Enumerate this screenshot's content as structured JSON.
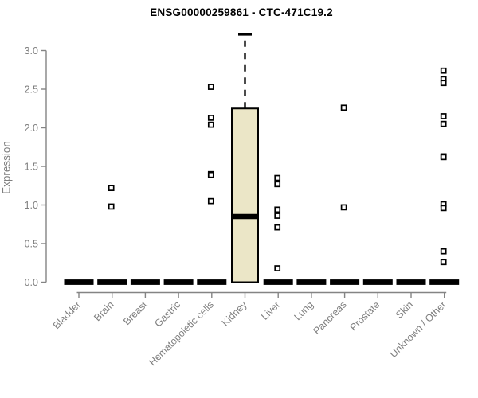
{
  "chart_data": {
    "type": "box",
    "title": "ENSG00000259861 - CTC-471C19.2",
    "ylabel": "Expression",
    "xlabel": "",
    "ylim": [
      0,
      3.3
    ],
    "ytick_labels": [
      "0.0",
      "0.5",
      "1.0",
      "1.5",
      "2.0",
      "2.5",
      "3.0"
    ],
    "ytick_values": [
      0,
      0.5,
      1.0,
      1.5,
      2.0,
      2.5,
      3.0
    ],
    "grid": false,
    "legend": false,
    "categories": [
      "Bladder",
      "Brain",
      "Breast",
      "Gastric",
      "Hematopoietic cells",
      "Kidney",
      "Liver",
      "Lung",
      "Pancreas",
      "Prostate",
      "Skin",
      "Unknown / Other"
    ],
    "series": [
      {
        "category": "Bladder",
        "q1": 0,
        "median": 0,
        "q3": 0,
        "whisker_low": 0,
        "whisker_high": 0,
        "outliers": []
      },
      {
        "category": "Brain",
        "q1": 0,
        "median": 0,
        "q3": 0,
        "whisker_low": 0,
        "whisker_high": 0,
        "outliers": [
          1.22,
          0.98
        ]
      },
      {
        "category": "Breast",
        "q1": 0,
        "median": 0,
        "q3": 0,
        "whisker_low": 0,
        "whisker_high": 0,
        "outliers": []
      },
      {
        "category": "Gastric",
        "q1": 0,
        "median": 0,
        "q3": 0,
        "whisker_low": 0,
        "whisker_high": 0,
        "outliers": []
      },
      {
        "category": "Hematopoietic cells",
        "q1": 0,
        "median": 0,
        "q3": 0,
        "whisker_low": 0,
        "whisker_high": 0,
        "outliers": [
          2.53,
          2.13,
          2.04,
          1.4,
          1.39,
          1.05
        ]
      },
      {
        "category": "Kidney",
        "q1": 0,
        "median": 0.85,
        "q3": 2.25,
        "whisker_low": 0,
        "whisker_high": 3.21,
        "outliers": []
      },
      {
        "category": "Liver",
        "q1": 0,
        "median": 0,
        "q3": 0,
        "whisker_low": 0,
        "whisker_high": 0,
        "outliers": [
          1.35,
          1.27,
          0.94,
          0.86,
          0.71,
          0.18
        ]
      },
      {
        "category": "Lung",
        "q1": 0,
        "median": 0,
        "q3": 0,
        "whisker_low": 0,
        "whisker_high": 0,
        "outliers": []
      },
      {
        "category": "Pancreas",
        "q1": 0,
        "median": 0,
        "q3": 0,
        "whisker_low": 0,
        "whisker_high": 0,
        "outliers": [
          2.26,
          0.97
        ]
      },
      {
        "category": "Prostate",
        "q1": 0,
        "median": 0,
        "q3": 0,
        "whisker_low": 0,
        "whisker_high": 0,
        "outliers": []
      },
      {
        "category": "Skin",
        "q1": 0,
        "median": 0,
        "q3": 0,
        "whisker_low": 0,
        "whisker_high": 0,
        "outliers": []
      },
      {
        "category": "Unknown / Other",
        "q1": 0,
        "median": 0,
        "q3": 0,
        "whisker_low": 0,
        "whisker_high": 0,
        "outliers": [
          2.74,
          2.63,
          2.58,
          2.15,
          2.05,
          1.63,
          1.62,
          1.01,
          0.96,
          0.4,
          0.26
        ]
      }
    ],
    "colors": {
      "box_fill": "#EBE6C7",
      "box_stroke": "#000000",
      "median": "#000000",
      "marker": "#000000",
      "axis": "#848484",
      "tick_label": "#7f7f7f",
      "title": "#000000"
    }
  }
}
